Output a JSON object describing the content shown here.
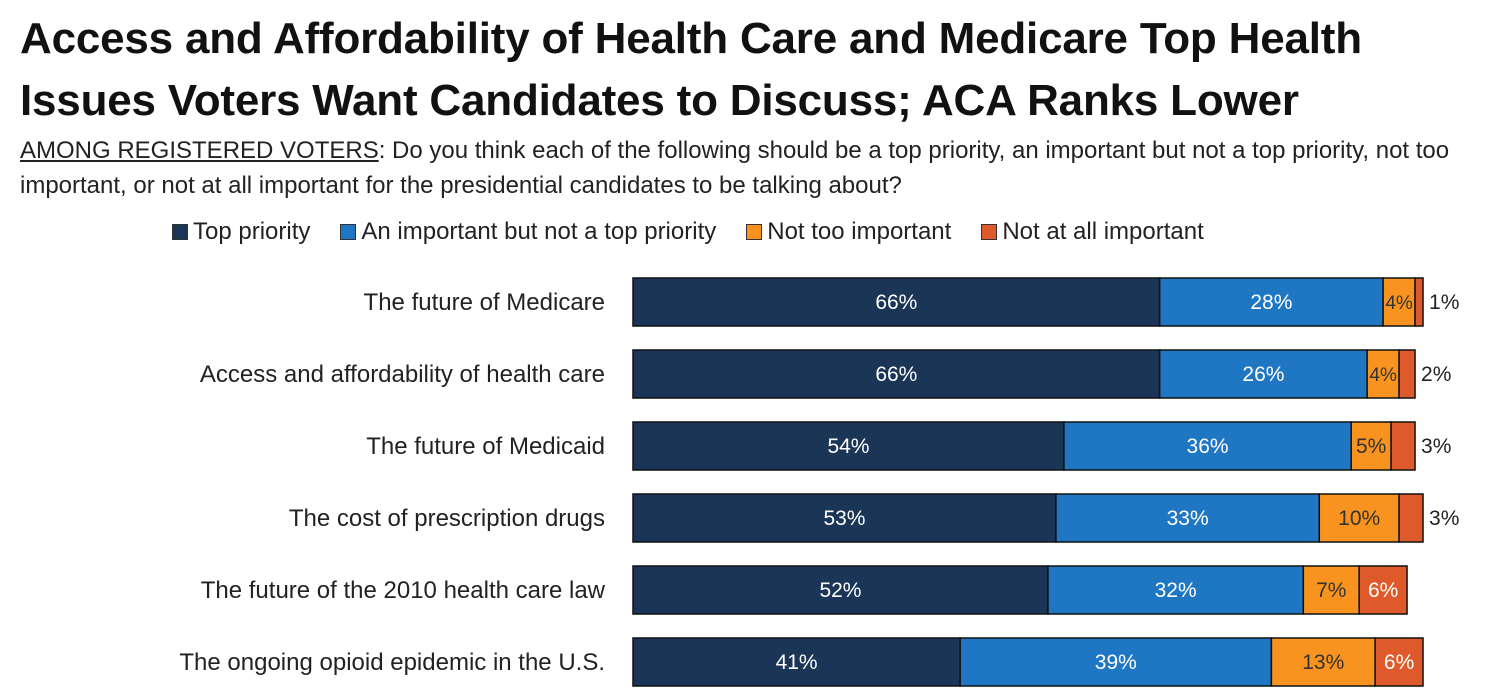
{
  "title": "Access and Affordability of Health Care and Medicare Top Health Issues Voters Want Candidates to Discuss; ACA Ranks Lower",
  "question": {
    "lead": "AMONG REGISTERED VOTERS",
    "text": ": Do you think each of the following should be a top priority, an important but not a top priority, not too important, or not at all important for the presidential candidates to be talking about?"
  },
  "colors": {
    "top_priority": "#1b3556",
    "important": "#1f77c4",
    "not_too": "#f7931e",
    "not_at_all": "#df5a2b"
  },
  "chart_data": {
    "type": "bar",
    "orientation": "horizontal",
    "stacked": true,
    "xlim": [
      0,
      100
    ],
    "unit": "%",
    "legend_position": "top",
    "categories": [
      "The future of Medicare",
      "Access and affordability of health care",
      "The future of Medicaid",
      "The cost of prescription drugs",
      "The future of the 2010 health care law",
      "The ongoing opioid epidemic in the U.S."
    ],
    "series": [
      {
        "name": "Top priority",
        "color_key": "top_priority",
        "values": [
          66,
          66,
          54,
          53,
          52,
          41
        ]
      },
      {
        "name": "An important but not a top priority",
        "color_key": "important",
        "values": [
          28,
          26,
          36,
          33,
          32,
          39
        ]
      },
      {
        "name": "Not too important",
        "color_key": "not_too",
        "values": [
          4,
          4,
          5,
          10,
          7,
          13
        ]
      },
      {
        "name": "Not at all important",
        "color_key": "not_at_all",
        "values": [
          1,
          2,
          3,
          3,
          6,
          6
        ]
      }
    ]
  }
}
